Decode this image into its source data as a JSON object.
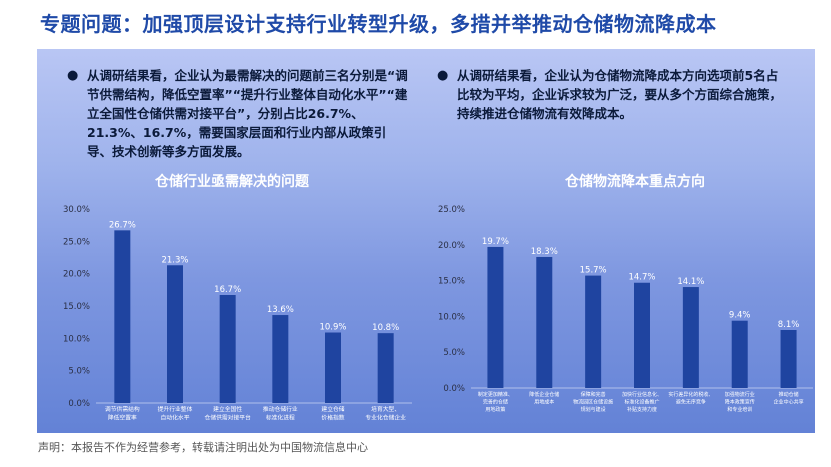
{
  "header": {
    "title": "专题问题：加强顶层设计支持行业转型升级，多措并举推动仓储物流降成本"
  },
  "bullets": [
    {
      "symbol": "●",
      "text": "从调研结果看，企业认为最需解决的问题前三名分别是“调节供需结构，降低空置率”“提升行业整体自动化水平”“建立全国性仓储供需对接平台”，分别占比26.7%、21.3%、16.7%，需要国家层面和行业内部从政策引导、技术创新等多方面发展。"
    },
    {
      "symbol": "●",
      "text": "从调研结果看，企业认为仓储物流降成本方向选项前5名占比较为平均，企业诉求较为广泛，要从多个方面综合施策，持续推进仓储物流有效降成本。"
    }
  ],
  "chart_titles": [
    "仓储行业亟需解决的问题",
    "仓储物流降本重点方向"
  ],
  "bar_color": "#1f44a0",
  "chart_data": [
    {
      "type": "bar",
      "title": "仓储行业亟需解决的问题",
      "categories": [
        [
          "调节供需结构",
          "降低空置率"
        ],
        [
          "提升行业整体",
          "自动化水平"
        ],
        [
          "建立全国性",
          "仓储供需对接平台"
        ],
        [
          "推动仓储行业",
          "标准化进程"
        ],
        [
          "建立仓储",
          "价格指数"
        ],
        [
          "培育大型、",
          "专业化仓储企业"
        ]
      ],
      "values": [
        26.7,
        21.3,
        16.7,
        13.6,
        10.9,
        10.8
      ],
      "value_labels": [
        "26.7%",
        "21.3%",
        "16.7%",
        "13.6%",
        "10.9%",
        "10.8%"
      ],
      "yticks": [
        "0.0%",
        "5.0%",
        "10.0%",
        "15.0%",
        "20.0%",
        "25.0%",
        "30.0%"
      ],
      "ylim": [
        0,
        30
      ],
      "xlabel": "",
      "ylabel": "",
      "grid": false
    },
    {
      "type": "bar",
      "title": "仓储物流降本重点方向",
      "categories": [
        [
          "制定更加精准、",
          "完善的仓储",
          "用地政策"
        ],
        [
          "降低企业仓储",
          "用地成本"
        ],
        [
          "保障和完善",
          "物流园区仓储设施",
          "规划与建设"
        ],
        [
          "加快行业信息化、",
          "标准化设备推广",
          "补贴支持力度"
        ],
        [
          "实行差异化的税收、",
          "避免无序竞争"
        ],
        [
          "加强物流行业",
          "降本政策宣传",
          "和专业培训"
        ],
        [
          "推动仓储",
          "企业中心共享"
        ]
      ],
      "values": [
        19.7,
        18.3,
        15.7,
        14.7,
        14.1,
        9.4,
        8.1
      ],
      "value_labels": [
        "19.7%",
        "18.3%",
        "15.7%",
        "14.7%",
        "14.1%",
        "9.4%",
        "8.1%"
      ],
      "yticks": [
        "0.0%",
        "5.0%",
        "10.0%",
        "15.0%",
        "20.0%",
        "25.0%"
      ],
      "ylim": [
        0,
        25
      ],
      "xlabel": "",
      "ylabel": "",
      "grid": false
    }
  ],
  "footer": {
    "disclaimer": "声明：本报告不作为经营参考，转载请注明出处为中国物流信息中心"
  }
}
